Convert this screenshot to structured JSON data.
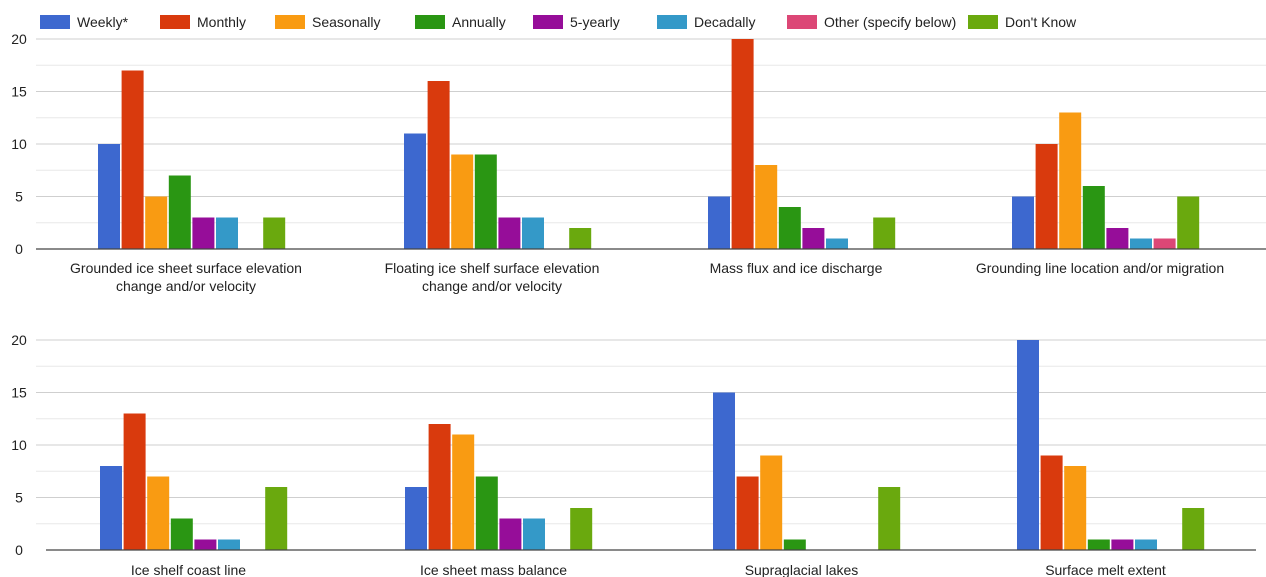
{
  "chart_data": [
    {
      "type": "bar",
      "legend": [
        "Weekly*",
        "Monthly",
        "Seasonally",
        "Annually",
        "5-yearly",
        "Decadally",
        "Other (specify below)",
        "Don't Know"
      ],
      "colors": [
        "#3d68cf",
        "#d93a0d",
        "#f99b12",
        "#2a9613",
        "#960d99",
        "#3499c8",
        "#dc4776",
        "#6aa90e"
      ],
      "legend_position": "top",
      "ylim": [
        0,
        20
      ],
      "y_ticks": [
        0,
        5,
        10,
        15,
        20
      ],
      "grid": true,
      "categories": [
        [
          "Grounded ice sheet surface elevation",
          "change and/or velocity"
        ],
        [
          "Floating ice shelf surface elevation",
          "change and/or velocity"
        ],
        [
          "Mass flux and ice discharge"
        ],
        [
          "Grounding line location and/or migration"
        ]
      ],
      "series": [
        {
          "name": "Weekly*",
          "values": [
            10,
            11,
            5,
            5
          ]
        },
        {
          "name": "Monthly",
          "values": [
            17,
            16,
            20,
            10
          ]
        },
        {
          "name": "Seasonally",
          "values": [
            5,
            9,
            8,
            13
          ]
        },
        {
          "name": "Annually",
          "values": [
            7,
            9,
            4,
            6
          ]
        },
        {
          "name": "5-yearly",
          "values": [
            3,
            3,
            2,
            2
          ]
        },
        {
          "name": "Decadally",
          "values": [
            3,
            3,
            1,
            1
          ]
        },
        {
          "name": "Other (specify below)",
          "values": [
            0,
            0,
            0,
            1
          ]
        },
        {
          "name": "Don't Know",
          "values": [
            3,
            2,
            3,
            5
          ]
        }
      ]
    },
    {
      "type": "bar",
      "ylim": [
        0,
        20
      ],
      "y_ticks": [
        0,
        5,
        10,
        15,
        20
      ],
      "grid": true,
      "categories": [
        [
          "Ice shelf coast line"
        ],
        [
          "Ice sheet mass balance"
        ],
        [
          "Supraglacial lakes"
        ],
        [
          "Surface melt extent"
        ]
      ],
      "series": [
        {
          "name": "Weekly*",
          "values": [
            8,
            6,
            15,
            20
          ]
        },
        {
          "name": "Monthly",
          "values": [
            13,
            12,
            7,
            9
          ]
        },
        {
          "name": "Seasonally",
          "values": [
            7,
            11,
            9,
            8
          ]
        },
        {
          "name": "Annually",
          "values": [
            3,
            7,
            1,
            1
          ]
        },
        {
          "name": "5-yearly",
          "values": [
            1,
            3,
            0,
            1
          ]
        },
        {
          "name": "Decadally",
          "values": [
            1,
            3,
            0,
            1
          ]
        },
        {
          "name": "Other (specify below)",
          "values": [
            0,
            0,
            0,
            0
          ]
        },
        {
          "name": "Don't Know",
          "values": [
            6,
            4,
            6,
            4
          ]
        }
      ]
    }
  ]
}
